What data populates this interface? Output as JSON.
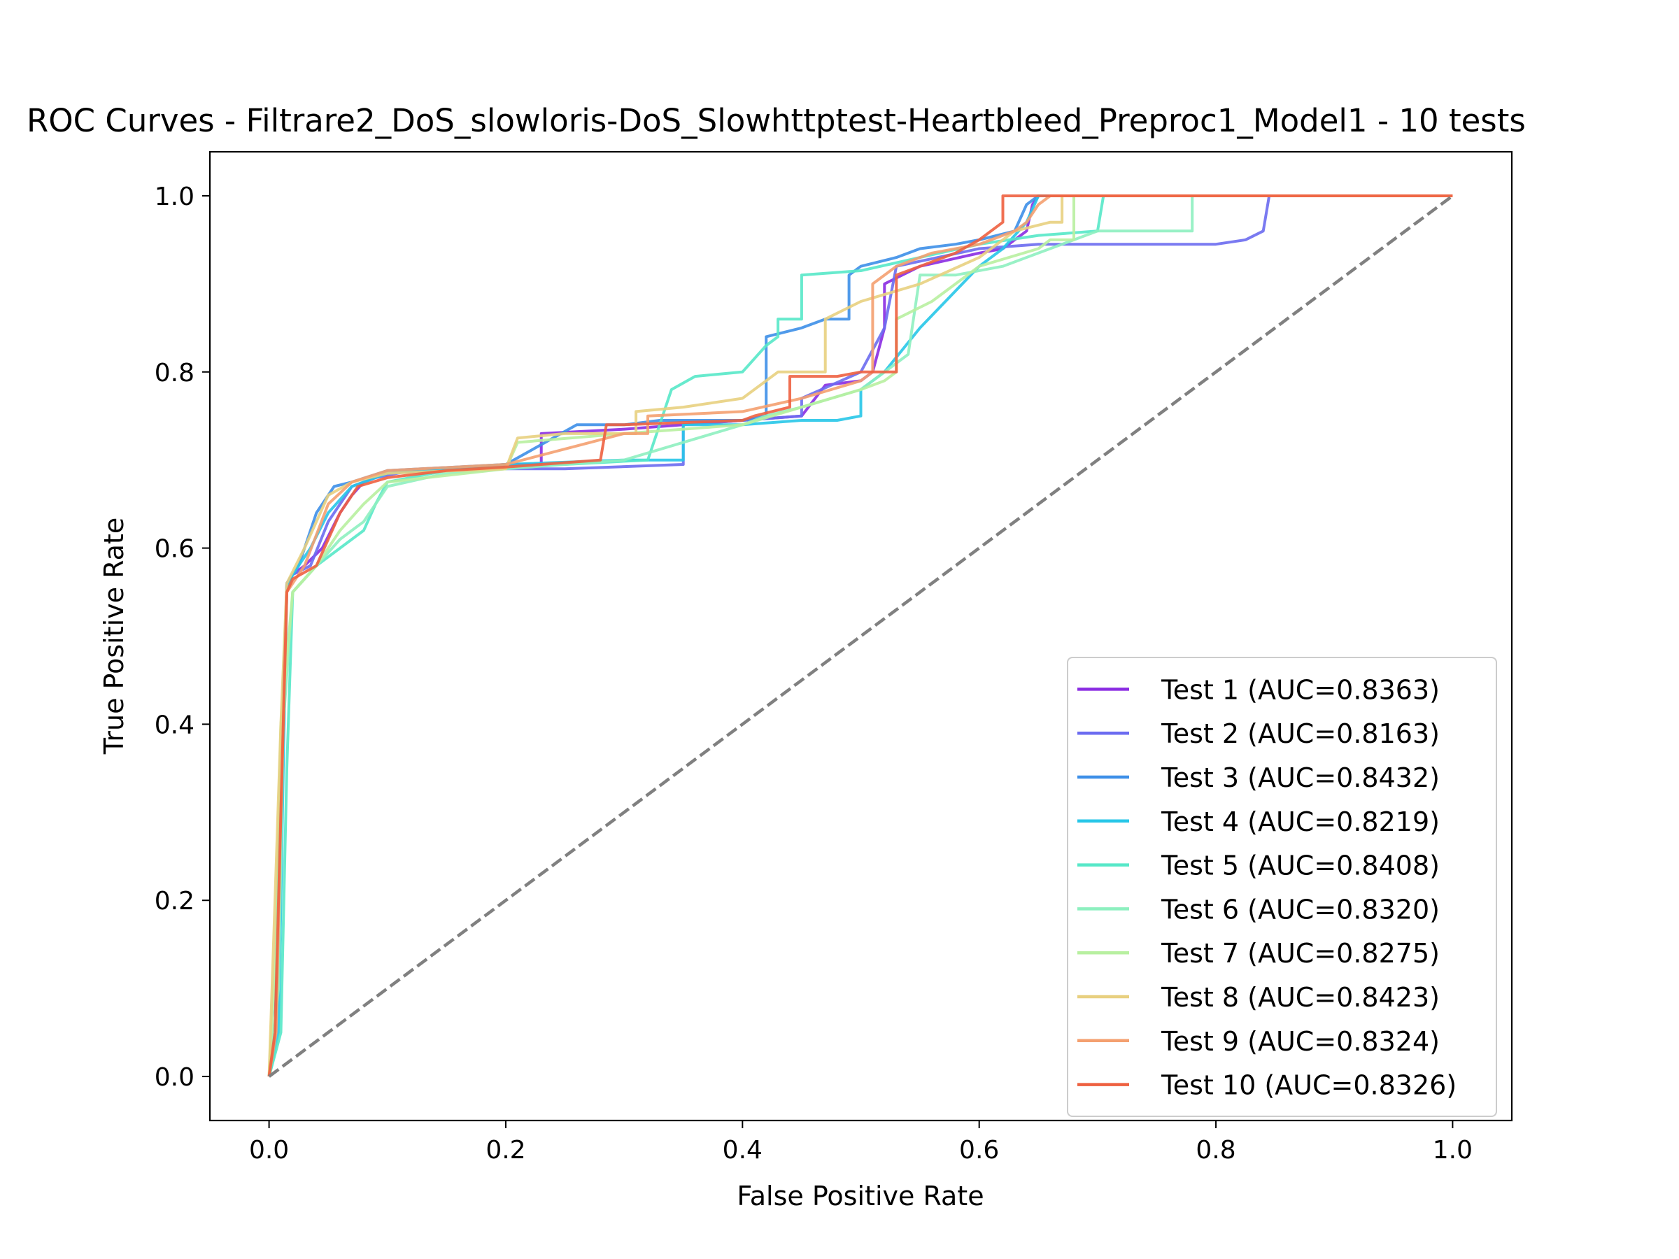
{
  "chart_data": {
    "type": "line",
    "title": "ROC Curves - Filtrare2_DoS_slowloris-DoS_Slowhttptest-Heartbleed_Preproc1_Model1 - 10 tests",
    "xlabel": "False Positive Rate",
    "ylabel": "True Positive Rate",
    "xlim": [
      -0.05,
      1.05
    ],
    "ylim": [
      -0.05,
      1.05
    ],
    "xticks": [
      "0.0",
      "0.2",
      "0.4",
      "0.6",
      "0.8",
      "1.0"
    ],
    "yticks": [
      "0.0",
      "0.2",
      "0.4",
      "0.6",
      "0.8",
      "1.0"
    ],
    "xtick_values": [
      0,
      0.2,
      0.4,
      0.6,
      0.8,
      1.0
    ],
    "ytick_values": [
      0,
      0.2,
      0.4,
      0.6,
      0.8,
      1.0
    ],
    "grid": false,
    "legend_position": "lower-right",
    "reference_line": {
      "x": [
        0,
        1
      ],
      "y": [
        0,
        1
      ],
      "color": "#808080",
      "style": "dashed"
    },
    "series": [
      {
        "name": "Test 1 (AUC=0.8363)",
        "color": "#8a2be2",
        "x": [
          0,
          0.005,
          0.01,
          0.015,
          0.02,
          0.03,
          0.045,
          0.06,
          0.07,
          0.08,
          0.1,
          0.15,
          0.2,
          0.23,
          0.23,
          0.3,
          0.4,
          0.45,
          0.47,
          0.5,
          0.51,
          0.52,
          0.52,
          0.55,
          0.6,
          0.62,
          0.63,
          0.64,
          0.645,
          0.65,
          1.0
        ],
        "y": [
          0,
          0.05,
          0.3,
          0.56,
          0.57,
          0.58,
          0.6,
          0.64,
          0.66,
          0.675,
          0.685,
          0.69,
          0.695,
          0.695,
          0.73,
          0.735,
          0.745,
          0.75,
          0.785,
          0.79,
          0.8,
          0.85,
          0.9,
          0.92,
          0.935,
          0.94,
          0.95,
          0.96,
          0.99,
          1.0,
          1.0
        ]
      },
      {
        "name": "Test 2 (AUC=0.8163)",
        "color": "#6b6bf0",
        "x": [
          0,
          0.005,
          0.01,
          0.015,
          0.02,
          0.035,
          0.05,
          0.07,
          0.09,
          0.12,
          0.2,
          0.25,
          0.25,
          0.35,
          0.35,
          0.45,
          0.45,
          0.5,
          0.52,
          0.53,
          0.6,
          0.65,
          0.8,
          0.825,
          0.84,
          0.845,
          1.0
        ],
        "y": [
          0,
          0.05,
          0.35,
          0.56,
          0.57,
          0.58,
          0.63,
          0.67,
          0.68,
          0.688,
          0.69,
          0.69,
          0.69,
          0.695,
          0.74,
          0.75,
          0.77,
          0.8,
          0.85,
          0.92,
          0.94,
          0.945,
          0.945,
          0.95,
          0.96,
          1.0,
          1.0
        ]
      },
      {
        "name": "Test 3 (AUC=0.8432)",
        "color": "#3d8fe8",
        "x": [
          0,
          0.005,
          0.01,
          0.015,
          0.025,
          0.04,
          0.055,
          0.07,
          0.1,
          0.2,
          0.26,
          0.3,
          0.33,
          0.4,
          0.42,
          0.42,
          0.45,
          0.47,
          0.49,
          0.49,
          0.5,
          0.53,
          0.55,
          0.58,
          0.6,
          0.63,
          0.64,
          0.65,
          1.0
        ],
        "y": [
          0,
          0.05,
          0.35,
          0.56,
          0.58,
          0.64,
          0.67,
          0.675,
          0.688,
          0.695,
          0.74,
          0.74,
          0.745,
          0.745,
          0.75,
          0.84,
          0.85,
          0.86,
          0.86,
          0.91,
          0.92,
          0.93,
          0.94,
          0.945,
          0.95,
          0.96,
          0.99,
          1.0,
          1.0
        ]
      },
      {
        "name": "Test 4 (AUC=0.8219)",
        "color": "#27c6e8",
        "x": [
          0,
          0.008,
          0.012,
          0.015,
          0.02,
          0.035,
          0.05,
          0.07,
          0.1,
          0.2,
          0.3,
          0.35,
          0.35,
          0.4,
          0.45,
          0.48,
          0.5,
          0.5,
          0.52,
          0.55,
          0.6,
          0.62,
          0.64,
          0.65,
          1.0
        ],
        "y": [
          0,
          0.05,
          0.35,
          0.55,
          0.57,
          0.6,
          0.64,
          0.67,
          0.685,
          0.695,
          0.7,
          0.7,
          0.74,
          0.74,
          0.745,
          0.745,
          0.75,
          0.78,
          0.8,
          0.85,
          0.92,
          0.94,
          0.97,
          1.0,
          1.0
        ]
      },
      {
        "name": "Test 5 (AUC=0.8408)",
        "color": "#57e8c8",
        "x": [
          0,
          0.01,
          0.015,
          0.02,
          0.04,
          0.06,
          0.08,
          0.09,
          0.1,
          0.15,
          0.25,
          0.32,
          0.34,
          0.36,
          0.4,
          0.42,
          0.43,
          0.43,
          0.45,
          0.45,
          0.5,
          0.55,
          0.6,
          0.65,
          0.7,
          0.705,
          1.0
        ],
        "y": [
          0,
          0.05,
          0.35,
          0.55,
          0.58,
          0.6,
          0.62,
          0.65,
          0.675,
          0.688,
          0.695,
          0.7,
          0.78,
          0.795,
          0.8,
          0.83,
          0.84,
          0.86,
          0.86,
          0.91,
          0.915,
          0.93,
          0.945,
          0.955,
          0.96,
          1.0,
          1.0
        ]
      },
      {
        "name": "Test 6 (AUC=0.8320)",
        "color": "#8ef0c0",
        "x": [
          0,
          0.008,
          0.012,
          0.02,
          0.04,
          0.06,
          0.08,
          0.1,
          0.15,
          0.25,
          0.3,
          0.4,
          0.42,
          0.45,
          0.5,
          0.54,
          0.55,
          0.58,
          0.62,
          0.65,
          0.68,
          0.7,
          0.75,
          0.78,
          0.78,
          1.0
        ],
        "y": [
          0,
          0.1,
          0.4,
          0.55,
          0.58,
          0.61,
          0.63,
          0.67,
          0.685,
          0.695,
          0.7,
          0.74,
          0.75,
          0.76,
          0.78,
          0.82,
          0.91,
          0.91,
          0.92,
          0.935,
          0.95,
          0.96,
          0.96,
          0.96,
          1.0,
          1.0
        ]
      },
      {
        "name": "Test 7 (AUC=0.8275)",
        "color": "#b8f0a0",
        "x": [
          0,
          0.006,
          0.01,
          0.02,
          0.04,
          0.06,
          0.08,
          0.1,
          0.2,
          0.21,
          0.3,
          0.4,
          0.45,
          0.5,
          0.52,
          0.53,
          0.53,
          0.56,
          0.6,
          0.65,
          0.66,
          0.68,
          0.68,
          1.0
        ],
        "y": [
          0,
          0.15,
          0.4,
          0.55,
          0.58,
          0.62,
          0.65,
          0.675,
          0.69,
          0.72,
          0.73,
          0.74,
          0.76,
          0.78,
          0.79,
          0.8,
          0.86,
          0.88,
          0.92,
          0.94,
          0.95,
          0.95,
          1.0,
          1.0
        ]
      },
      {
        "name": "Test 8 (AUC=0.8423)",
        "color": "#e8d080",
        "x": [
          0,
          0.005,
          0.01,
          0.015,
          0.03,
          0.05,
          0.07,
          0.1,
          0.2,
          0.21,
          0.25,
          0.31,
          0.31,
          0.35,
          0.4,
          0.43,
          0.47,
          0.47,
          0.5,
          0.55,
          0.6,
          0.63,
          0.66,
          0.67,
          0.67,
          1.0
        ],
        "y": [
          0,
          0.2,
          0.4,
          0.56,
          0.6,
          0.66,
          0.675,
          0.685,
          0.69,
          0.725,
          0.73,
          0.73,
          0.755,
          0.76,
          0.77,
          0.8,
          0.8,
          0.86,
          0.88,
          0.9,
          0.93,
          0.96,
          0.97,
          0.97,
          1.0,
          1.0
        ]
      },
      {
        "name": "Test 9 (AUC=0.8324)",
        "color": "#f4a070",
        "x": [
          0,
          0.006,
          0.01,
          0.015,
          0.03,
          0.05,
          0.07,
          0.1,
          0.2,
          0.3,
          0.32,
          0.32,
          0.4,
          0.45,
          0.5,
          0.51,
          0.51,
          0.53,
          0.56,
          0.6,
          0.63,
          0.64,
          0.65,
          0.66,
          1.0
        ],
        "y": [
          0,
          0.05,
          0.3,
          0.55,
          0.58,
          0.65,
          0.675,
          0.688,
          0.695,
          0.73,
          0.73,
          0.75,
          0.755,
          0.77,
          0.79,
          0.8,
          0.9,
          0.92,
          0.935,
          0.945,
          0.96,
          0.97,
          0.99,
          1.0,
          1.0
        ]
      },
      {
        "name": "Test 10 (AUC=0.8326)",
        "color": "#ee6040",
        "x": [
          0,
          0.005,
          0.01,
          0.015,
          0.02,
          0.04,
          0.05,
          0.06,
          0.075,
          0.1,
          0.15,
          0.2,
          0.28,
          0.285,
          0.3,
          0.4,
          0.41,
          0.44,
          0.44,
          0.48,
          0.5,
          0.5,
          0.53,
          0.53,
          0.55,
          0.58,
          0.6,
          0.62,
          0.62,
          1.0
        ],
        "y": [
          0,
          0.05,
          0.3,
          0.55,
          0.565,
          0.58,
          0.61,
          0.64,
          0.67,
          0.68,
          0.688,
          0.692,
          0.7,
          0.74,
          0.74,
          0.745,
          0.75,
          0.76,
          0.795,
          0.795,
          0.8,
          0.8,
          0.8,
          0.91,
          0.92,
          0.935,
          0.95,
          0.97,
          1.0,
          1.0
        ]
      }
    ]
  }
}
